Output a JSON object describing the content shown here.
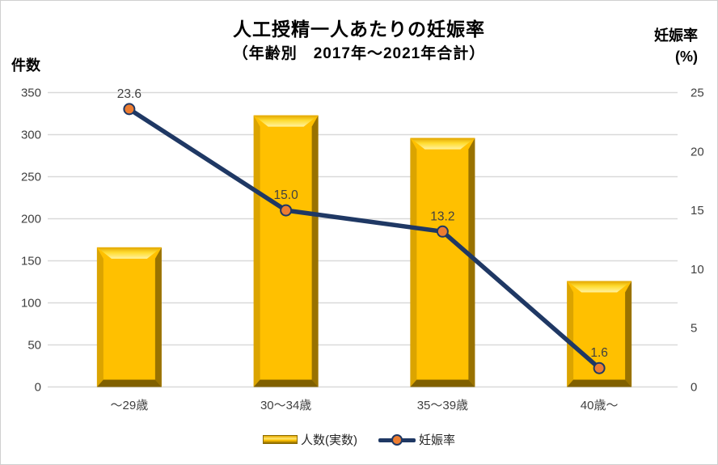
{
  "chart_data": {
    "type": "combo-bar-line",
    "title": "人工授精一人あたりの妊娠率",
    "subtitle": "（年齢別　2017年～2021年合計）",
    "categories": [
      "～29歳",
      "30～34歳",
      "35～39歳",
      "40歳～"
    ],
    "series": [
      {
        "name": "人数(実数)",
        "type": "bar",
        "axis": "left",
        "values": [
          166,
          323,
          296,
          126
        ]
      },
      {
        "name": "妊娠率",
        "type": "line",
        "axis": "right",
        "values": [
          23.6,
          15.0,
          13.2,
          1.6
        ],
        "point_labels": [
          "23.6",
          "15.0",
          "13.2",
          "1.6"
        ]
      }
    ],
    "left_axis": {
      "title": "件数",
      "min": 0,
      "max": 350,
      "step": 50,
      "ticks": [
        "0",
        "50",
        "100",
        "150",
        "200",
        "250",
        "300",
        "350"
      ]
    },
    "right_axis": {
      "title": [
        "妊娠率",
        "(%)"
      ],
      "min": 0,
      "max": 25,
      "step": 5,
      "ticks": [
        "0",
        "5",
        "10",
        "15",
        "20",
        "25"
      ]
    },
    "grid": true,
    "legend_position": "bottom",
    "colors": {
      "bar": "#FFC000",
      "line": "#1F3864",
      "marker": "#ED7D31",
      "gridline": "#D9D9D9",
      "tick_label": "#404040",
      "data_label": "#404040"
    }
  },
  "legend": {
    "items": [
      {
        "label": "人数(実数)",
        "swatch": "bar"
      },
      {
        "label": "妊娠率",
        "swatch": "line-marker"
      }
    ]
  }
}
